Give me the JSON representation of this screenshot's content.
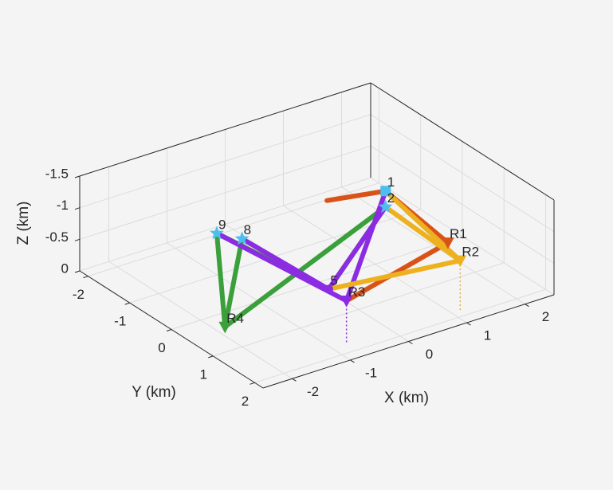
{
  "chart_data": {
    "type": "line3d",
    "xlabel": "X (km)",
    "ylabel": "Y (km)",
    "zlabel": "Z (km)",
    "xlim": [
      -2.5,
      2.5
    ],
    "ylim": [
      -2.2,
      2.2
    ],
    "zlim": [
      -1.5,
      0
    ],
    "z_reversed": true,
    "xticks": [
      -2,
      -1,
      0,
      1,
      2
    ],
    "yticks": [
      -2,
      -1,
      0,
      1,
      2
    ],
    "zticks": [
      -1.5,
      -1,
      -0.5,
      0
    ],
    "grid": true,
    "series": [
      {
        "color": "#3ba03b",
        "x": [
          -1.39,
          -2.18,
          0.9
        ],
        "y": [
          -0.46,
          0.84,
          0.39
        ],
        "z": [
          -1.0,
          -0.3,
          -1.1
        ]
      },
      {
        "color": "#3ba03b",
        "x": [
          -1.2,
          -2.18
        ],
        "y": [
          -0.12,
          0.84
        ],
        "z": [
          -1.0,
          -0.3
        ]
      },
      {
        "color": "#3ba03b",
        "x": [
          -1.39,
          -0.77,
          0.9
        ],
        "y": [
          -0.46,
          1.36,
          0.39
        ],
        "z": [
          -1.0,
          -0.7,
          -1.1
        ]
      },
      {
        "color": "#8b2be2",
        "x": [
          -1.39,
          -0.73,
          0.96
        ],
        "y": [
          -0.46,
          1.73,
          0.31
        ],
        "z": [
          -1.0,
          -0.66,
          -1.3
        ]
      },
      {
        "color": "#8b2be2",
        "x": [
          -1.2,
          -0.77,
          0.9
        ],
        "y": [
          -0.12,
          1.36,
          0.39
        ],
        "z": [
          -1.0,
          -0.7,
          -1.1
        ]
      },
      {
        "color": "#d95319",
        "x": [
          0.96,
          1.2,
          -0.73
        ],
        "y": [
          0.31,
          1.47,
          1.73
        ],
        "z": [
          -1.3,
          -0.9,
          -0.66
        ]
      },
      {
        "color": "#d95319",
        "x": [
          0.96,
          0.23
        ],
        "y": [
          0.31,
          -0.08
        ],
        "z": [
          -1.3,
          -1.2
        ]
      },
      {
        "color": "#edb120",
        "x": [
          0.9,
          1.11,
          -0.77
        ],
        "y": [
          0.39,
          1.89,
          1.36
        ],
        "z": [
          -1.1,
          -0.82,
          -0.7
        ]
      },
      {
        "color": "#edb120",
        "x": [
          0.96,
          1.11
        ],
        "y": [
          0.31,
          1.89
        ],
        "z": [
          -1.3,
          -0.82
        ]
      }
    ],
    "points": [
      {
        "label": "1",
        "x": 0.96,
        "y": 0.31,
        "z": -1.3,
        "marker": "square",
        "color": "#4dbeee"
      },
      {
        "label": "2",
        "x": 0.9,
        "y": 0.39,
        "z": -1.1,
        "marker": "star",
        "color": "#4dbeee"
      },
      {
        "label": "R1",
        "x": 1.2,
        "y": 1.47,
        "z": -0.9,
        "marker": "triangle",
        "color": "#d95319"
      },
      {
        "label": "R2",
        "x": 1.11,
        "y": 1.89,
        "z": -0.82,
        "marker": "triangle",
        "color": "#edb120",
        "drop": true
      },
      {
        "label": "R3",
        "x": -0.73,
        "y": 1.73,
        "z": -0.66,
        "marker": "triangle",
        "color": "#8b2be2",
        "drop": true
      },
      {
        "label": "R4",
        "x": -2.18,
        "y": 0.84,
        "z": -0.3,
        "marker": "triangle",
        "color": "#3ba03b"
      },
      {
        "label": "5",
        "x": -0.77,
        "y": 1.36,
        "z": -0.7,
        "marker": "circle",
        "color": "#8b2be2"
      },
      {
        "label": "8",
        "x": -1.2,
        "y": -0.12,
        "z": -1.0,
        "marker": "star",
        "color": "#4dbeee"
      },
      {
        "label": "9",
        "x": -1.39,
        "y": -0.46,
        "z": -1.0,
        "marker": "star",
        "color": "#4dbeee"
      }
    ]
  }
}
